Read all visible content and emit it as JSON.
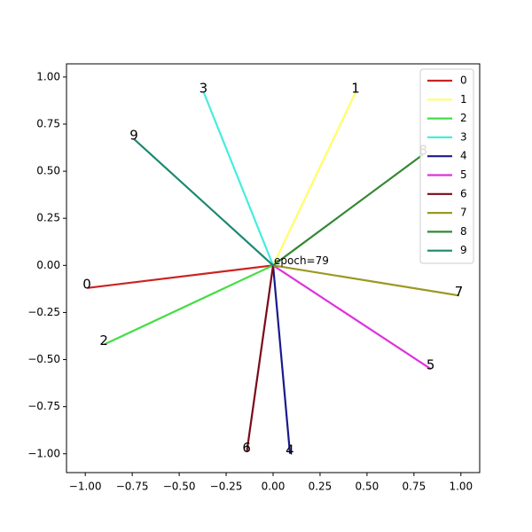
{
  "chart_data": {
    "type": "line",
    "annotation": "epoch=79",
    "xlim": [
      -1.1,
      1.1
    ],
    "ylim": [
      -1.1,
      1.07
    ],
    "xticks": [
      {
        "value": -1,
        "label": "−1.00"
      },
      {
        "value": -0.75,
        "label": "−0.75"
      },
      {
        "value": -0.5,
        "label": "−0.50"
      },
      {
        "value": -0.25,
        "label": "−0.25"
      },
      {
        "value": 0,
        "label": "0.00"
      },
      {
        "value": 0.25,
        "label": "0.25"
      },
      {
        "value": 0.5,
        "label": "0.50"
      },
      {
        "value": 0.75,
        "label": "0.75"
      },
      {
        "value": 1,
        "label": "1.00"
      }
    ],
    "yticks": [
      {
        "value": -1,
        "label": "−1.00"
      },
      {
        "value": -0.75,
        "label": "−0.75"
      },
      {
        "value": -0.5,
        "label": "−0.50"
      },
      {
        "value": -0.25,
        "label": "−0.25"
      },
      {
        "value": 0,
        "label": "0.00"
      },
      {
        "value": 0.25,
        "label": "0.25"
      },
      {
        "value": 0.5,
        "label": "0.50"
      },
      {
        "value": 0.75,
        "label": "0.75"
      },
      {
        "value": 1,
        "label": "1.00"
      }
    ],
    "legend": "upper right",
    "series": [
      {
        "name": "0",
        "color": "#cc2222",
        "x": [
          0,
          -0.99
        ],
        "values": [
          0,
          -0.12
        ]
      },
      {
        "name": "1",
        "color": "#ffff66",
        "x": [
          0,
          0.44
        ],
        "values": [
          0,
          0.92
        ]
      },
      {
        "name": "2",
        "color": "#44dd44",
        "x": [
          0,
          -0.9
        ],
        "values": [
          0,
          -0.42
        ]
      },
      {
        "name": "3",
        "color": "#44eedd",
        "x": [
          0,
          -0.37
        ],
        "values": [
          0,
          0.92
        ]
      },
      {
        "name": "4",
        "color": "#1a1a8c",
        "x": [
          0,
          0.09
        ],
        "values": [
          0,
          -1.0
        ]
      },
      {
        "name": "5",
        "color": "#dd33dd",
        "x": [
          0,
          0.84
        ],
        "values": [
          0,
          -0.55
        ]
      },
      {
        "name": "6",
        "color": "#7a0a1a",
        "x": [
          0,
          -0.14
        ],
        "values": [
          0,
          -0.99
        ]
      },
      {
        "name": "7",
        "color": "#999922",
        "x": [
          0,
          0.99
        ],
        "values": [
          0,
          -0.16
        ]
      },
      {
        "name": "8",
        "color": "#338833",
        "x": [
          0,
          0.8
        ],
        "values": [
          0,
          0.59
        ]
      },
      {
        "name": "9",
        "color": "#1a8870",
        "x": [
          0,
          -0.74
        ],
        "values": [
          0,
          0.67
        ]
      }
    ]
  }
}
